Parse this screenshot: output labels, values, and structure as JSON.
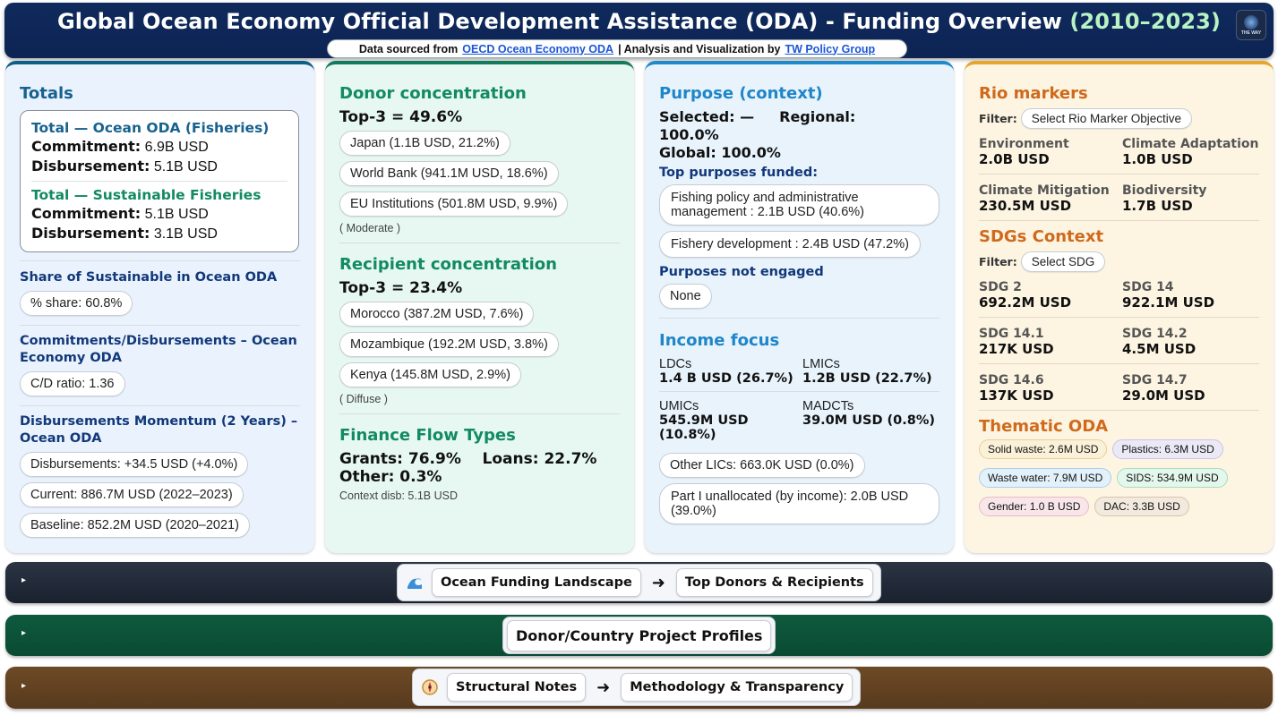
{
  "header": {
    "title": "Global Ocean Economy Official Development Assistance (ODA) - Funding Overview",
    "years": "(2010–2023)",
    "source_prefix": "Data sourced from",
    "source_link": "OECD Ocean Economy ODA",
    "analysis_prefix": "| Analysis and Visualization by",
    "analysis_link": "TW Policy Group",
    "logo_text": "THE WAY"
  },
  "totals": {
    "title": "Totals",
    "ocean_title": "Total — Ocean ODA (Fisheries)",
    "ocean_commit_label": "Commitment:",
    "ocean_commit_value": "6.9B USD",
    "ocean_disb_label": "Disbursement:",
    "ocean_disb_value": "5.1B USD",
    "sust_title": "Total — Sustainable Fisheries",
    "sust_commit_label": "Commitment:",
    "sust_commit_value": "5.1B USD",
    "sust_disb_label": "Disbursement:",
    "sust_disb_value": "3.1B USD",
    "share_title": "Share of Sustainable in Ocean ODA",
    "share_pill": "% share: 60.8%",
    "cd_title": "Commitments/Disbursements – Ocean Economy ODA",
    "cd_pill": "C/D ratio: 1.36",
    "momentum_title": "Disbursements Momentum (2 Years) – Ocean ODA",
    "momentum_pills": [
      "Disbursements: +34.5 USD (+4.0%)",
      "Current: 886.7M USD (2022–2023)",
      "Baseline: 852.2M USD (2020–2021)"
    ]
  },
  "donor": {
    "title": "Donor concentration",
    "top3": "Top-3 = 49.6%",
    "items": [
      "Japan (1.1B USD, 21.2%)",
      "World Bank (941.1M USD, 18.6%)",
      "EU Institutions (501.8M USD, 9.9%)"
    ],
    "note": "( Moderate )"
  },
  "recipient": {
    "title": "Recipient concentration",
    "top3": "Top-3 = 23.4%",
    "items": [
      "Morocco (387.2M USD, 7.6%)",
      "Mozambique (192.2M USD, 3.8%)",
      "Kenya (145.8M USD, 2.9%)"
    ],
    "note": "( Diffuse )"
  },
  "flows": {
    "title": "Finance Flow Types",
    "grants": "Grants: 76.9%",
    "loans": "Loans: 22.7%",
    "other": "Other: 0.3%",
    "note": "Context disb: 5.1B USD"
  },
  "purpose": {
    "title": "Purpose (context)",
    "selected": "Selected: —",
    "regional": "Regional: 100.0%",
    "global": "Global: 100.0%",
    "top_head": "Top purposes funded:",
    "top_items": [
      "Fishing policy and administrative management : 2.1B USD (40.6%)",
      "Fishery development : 2.4B USD (47.2%)"
    ],
    "not_head": "Purposes not engaged",
    "not_item": "None"
  },
  "income": {
    "title": "Income focus",
    "cells": [
      {
        "label": "LDCs",
        "value": "1.4 B USD (26.7%)"
      },
      {
        "label": "LMICs",
        "value": "1.2B USD (22.7%)"
      },
      {
        "label": "UMICs",
        "value": "545.9M USD (10.8%)"
      },
      {
        "label": "MADCTs",
        "value": "39.0M USD (0.8%)"
      }
    ],
    "other_lics": "Other LICs: 663.0K USD (0.0%)",
    "unallocated": "Part I unallocated (by income): 2.0B USD (39.0%)"
  },
  "rio": {
    "title": "Rio markers",
    "filter_label": "Filter:",
    "filter_value": "Select Rio Marker Objective",
    "cells": [
      {
        "label": "Environment",
        "value": "2.0B USD"
      },
      {
        "label": "Climate Adaptation",
        "value": "1.0B USD"
      },
      {
        "label": "Climate Mitigation",
        "value": "230.5M USD"
      },
      {
        "label": "Biodiversity",
        "value": "1.7B USD"
      }
    ]
  },
  "sdgs": {
    "title": "SDGs Context",
    "filter_label": "Filter:",
    "filter_value": "Select SDG",
    "cells": [
      {
        "label": "SDG 2",
        "value": "692.2M USD"
      },
      {
        "label": "SDG 14",
        "value": "922.1M USD"
      },
      {
        "label": "SDG 14.1",
        "value": "217K USD"
      },
      {
        "label": "SDG 14.2",
        "value": "4.5M USD"
      },
      {
        "label": "SDG 14.6",
        "value": "137K USD"
      },
      {
        "label": "SDG 14.7",
        "value": "29.0M USD"
      }
    ]
  },
  "thematic": {
    "title": "Thematic ODA",
    "chips": [
      {
        "text": "Solid waste: 2.6M USD",
        "bg": "#fbf0d8",
        "border": "#e8cf96"
      },
      {
        "text": "Plastics: 6.3M USD",
        "bg": "#ece9f7",
        "border": "#c9c3e6"
      },
      {
        "text": "Waste water: 7.9M USD",
        "bg": "#e3f1fb",
        "border": "#a9cfe8"
      },
      {
        "text": "SIDS: 534.9M USD",
        "bg": "#e3f7ec",
        "border": "#a6dcbd"
      },
      {
        "text": "Gender: 1.0 B USD",
        "bg": "#f8e6ea",
        "border": "#e5bcc6"
      },
      {
        "text": "DAC: 3.3B USD",
        "bg": "#f2e9df",
        "border": "#d8c3ad"
      }
    ]
  },
  "nav": {
    "toggle": "▸",
    "bar1": {
      "icon": "wave-icon",
      "btn1": "Ocean Funding Landscape",
      "arrow": "➜",
      "btn2": "Top Donors & Recipients"
    },
    "bar2": {
      "btn": "Donor/Country Project Profiles"
    },
    "bar3": {
      "icon": "compass-icon",
      "btn1": "Structural Notes",
      "arrow": "➜",
      "btn2": "Methodology & Transparency"
    }
  }
}
